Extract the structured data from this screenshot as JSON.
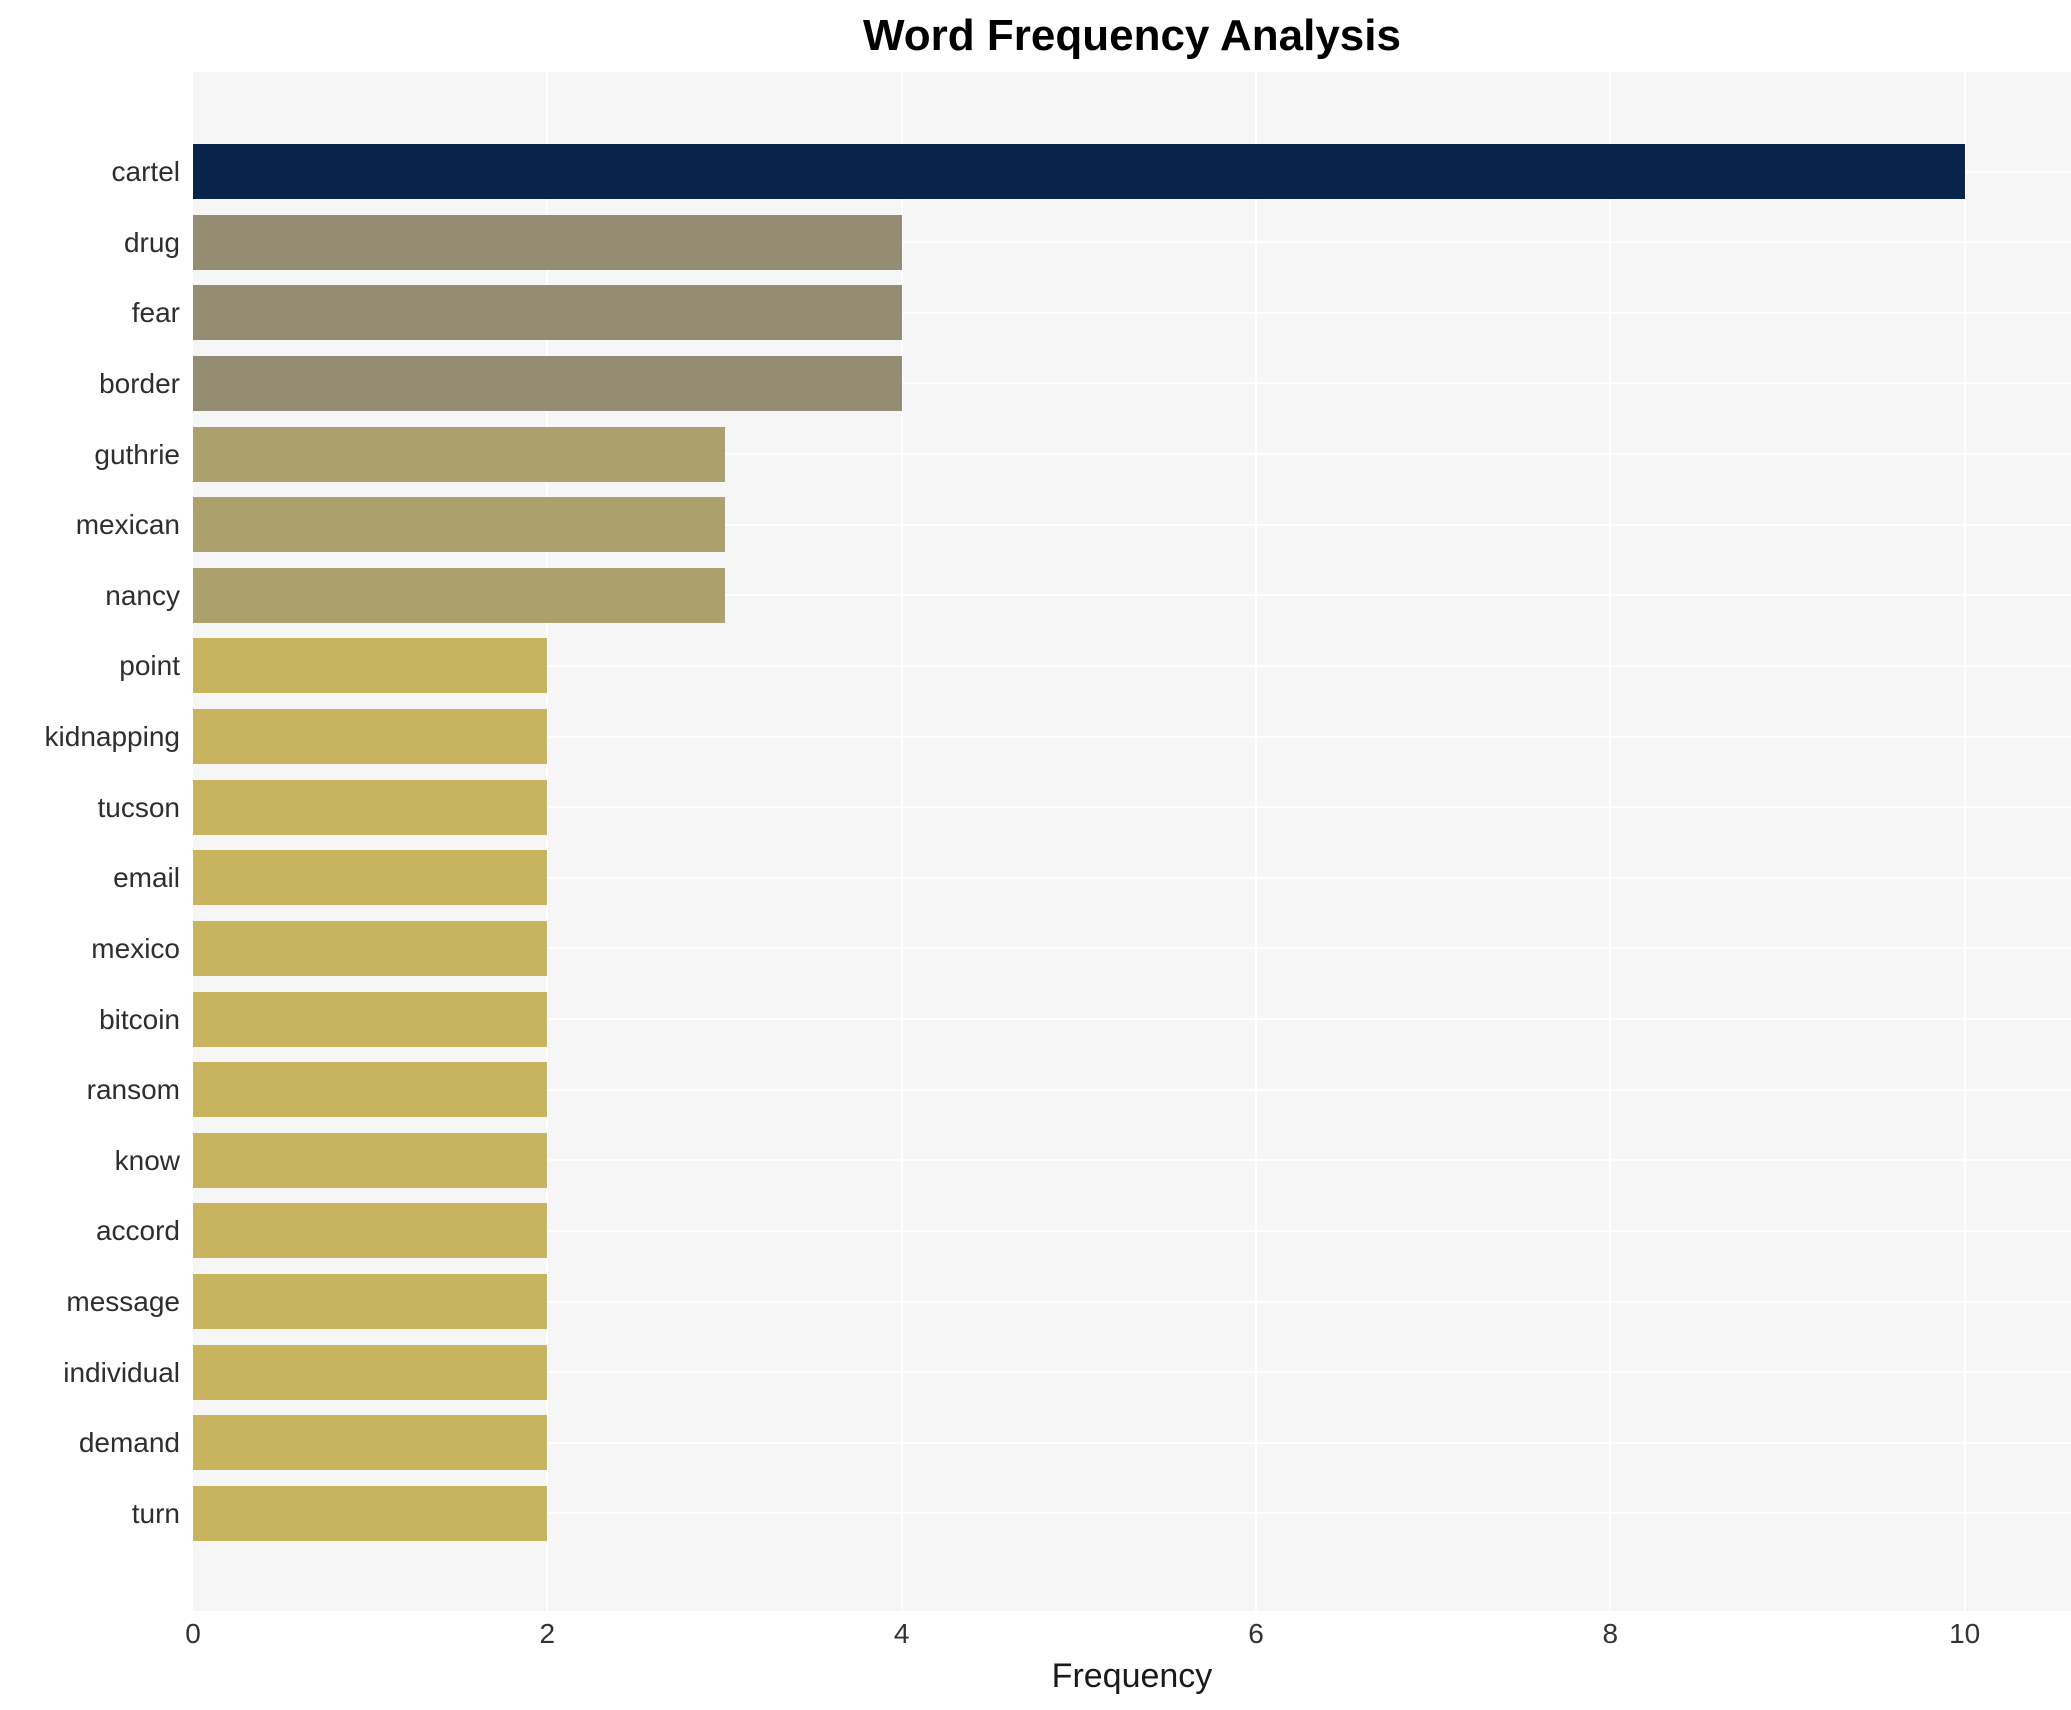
{
  "chart_data": {
    "type": "bar",
    "orientation": "horizontal",
    "title": "Word Frequency Analysis",
    "xlabel": "Frequency",
    "ylabel": "",
    "categories": [
      "cartel",
      "drug",
      "fear",
      "border",
      "guthrie",
      "mexican",
      "nancy",
      "point",
      "kidnapping",
      "tucson",
      "email",
      "mexico",
      "bitcoin",
      "ransom",
      "know",
      "accord",
      "message",
      "individual",
      "demand",
      "turn"
    ],
    "values": [
      10,
      4,
      4,
      4,
      3,
      3,
      3,
      2,
      2,
      2,
      2,
      2,
      2,
      2,
      2,
      2,
      2,
      2,
      2,
      2
    ],
    "bar_colors": [
      "#08244b",
      "#948c73",
      "#948c73",
      "#948c73",
      "#aca06f",
      "#aca06f",
      "#aca06f",
      "#c8b45f",
      "#c8b45f",
      "#c8b45f",
      "#c8b45f",
      "#c8b45f",
      "#c8b45f",
      "#c8b45f",
      "#c8b45f",
      "#c8b45f",
      "#c8b45f",
      "#c8b45f",
      "#c8b45f",
      "#c8b45f"
    ],
    "xtick_labels": [
      "0",
      "2",
      "4",
      "6",
      "8",
      "10"
    ],
    "xtick_values": [
      0,
      2,
      4,
      6,
      8,
      10
    ],
    "xlim": [
      0,
      10.6
    ],
    "grid": {
      "vertical_at_ticks": true,
      "horizontal_at_category_centers": true,
      "gridline_color": "#ffffff"
    },
    "plot_background": "#f6f6f7",
    "page_background": "#ffffff"
  },
  "styles": {
    "title_color": "#000000",
    "y_label_color": "#2e2e2e",
    "x_tick_color": "#333333",
    "x_axis_label_color": "#1a1a1a"
  }
}
